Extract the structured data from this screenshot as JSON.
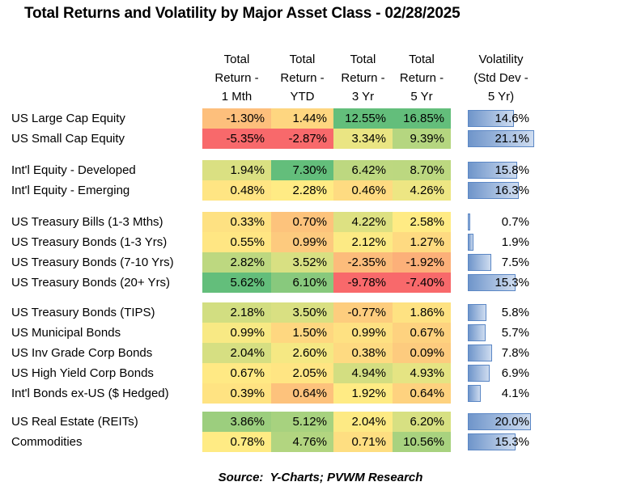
{
  "title": "Total Returns and Volatility by Major Asset Class - 02/28/2025",
  "source_note": "Source:  Y-Charts; PVWM Research",
  "columns": [
    {
      "lines": [
        "Total",
        "Return -",
        "1 Mth"
      ]
    },
    {
      "lines": [
        "Total",
        "Return -",
        "YTD"
      ]
    },
    {
      "lines": [
        "Total",
        "Return -",
        "3 Yr"
      ]
    },
    {
      "lines": [
        "Total",
        "Return -",
        "5 Yr"
      ]
    },
    {
      "lines": [
        "Volatility",
        "(Std Dev -",
        "5 Yr)"
      ]
    }
  ],
  "colors": {
    "heatmap_min_red": "#F8696B",
    "heatmap_mid_yellow": "#FFEB84",
    "heatmap_max_green": "#63BE7B",
    "bar_border": "#5B87C5",
    "bar_fill_start": "#6F95CA",
    "bar_fill_end": "#CEDCF0",
    "text": "#000000"
  },
  "chart_data": {
    "type": "table",
    "title": "Total Returns and Volatility by Major Asset Class - 02/28/2025",
    "column_headers": [
      "Total Return - 1 Mth",
      "Total Return - YTD",
      "Total Return - 3 Yr",
      "Total Return - 5 Yr",
      "Volatility (Std Dev - 5 Yr)"
    ],
    "heatmap_rule": "3-color scale computed per return column: min=red #F8696B, median=yellow #FFEB84, max=green #63BE7B",
    "volatility_bar_max": 21.1,
    "groups": [
      {
        "rows": [
          {
            "label": "US Large Cap Equity",
            "returns": [
              -1.3,
              1.44,
              12.55,
              16.85
            ],
            "volatility": 14.6
          },
          {
            "label": "US Small Cap Equity",
            "returns": [
              -5.35,
              -2.87,
              3.34,
              9.39
            ],
            "volatility": 21.1
          }
        ]
      },
      {
        "rows": [
          {
            "label": "Int'l Equity - Developed",
            "returns": [
              1.94,
              7.3,
              6.42,
              8.7
            ],
            "volatility": 15.8
          },
          {
            "label": "Int'l Equity - Emerging",
            "returns": [
              0.48,
              2.28,
              0.46,
              4.26
            ],
            "volatility": 16.3
          }
        ]
      },
      {
        "rows": [
          {
            "label": "US Treasury Bills (1-3 Mths)",
            "returns": [
              0.33,
              0.7,
              4.22,
              2.58
            ],
            "volatility": 0.7
          },
          {
            "label": "US Treasury Bonds (1-3 Yrs)",
            "returns": [
              0.55,
              0.99,
              2.12,
              1.27
            ],
            "volatility": 1.9
          },
          {
            "label": "US Treasury Bonds (7-10 Yrs)",
            "returns": [
              2.82,
              3.52,
              -2.35,
              -1.92
            ],
            "volatility": 7.5
          },
          {
            "label": "US Treasury Bonds (20+ Yrs)",
            "returns": [
              5.62,
              6.1,
              -9.78,
              -7.4
            ],
            "volatility": 15.3
          }
        ]
      },
      {
        "rows": [
          {
            "label": "US Treasury Bonds (TIPS)",
            "returns": [
              2.18,
              3.5,
              -0.77,
              1.86
            ],
            "volatility": 5.8
          },
          {
            "label": "US Municipal Bonds",
            "returns": [
              0.99,
              1.5,
              0.99,
              0.67
            ],
            "volatility": 5.7
          },
          {
            "label": "US Inv Grade Corp Bonds",
            "returns": [
              2.04,
              2.6,
              0.38,
              0.09
            ],
            "volatility": 7.8
          },
          {
            "label": "US High Yield Corp Bonds",
            "returns": [
              0.67,
              2.05,
              4.94,
              4.93
            ],
            "volatility": 6.9
          },
          {
            "label": "Int'l Bonds ex-US ($ Hedged)",
            "returns": [
              0.39,
              0.64,
              1.92,
              0.64
            ],
            "volatility": 4.1
          }
        ]
      },
      {
        "rows": [
          {
            "label": "US Real Estate (REITs)",
            "returns": [
              3.86,
              5.12,
              2.04,
              6.2
            ],
            "volatility": 20.0
          },
          {
            "label": "Commodities",
            "returns": [
              0.78,
              4.76,
              0.71,
              10.56
            ],
            "volatility": 15.3
          }
        ]
      }
    ]
  }
}
